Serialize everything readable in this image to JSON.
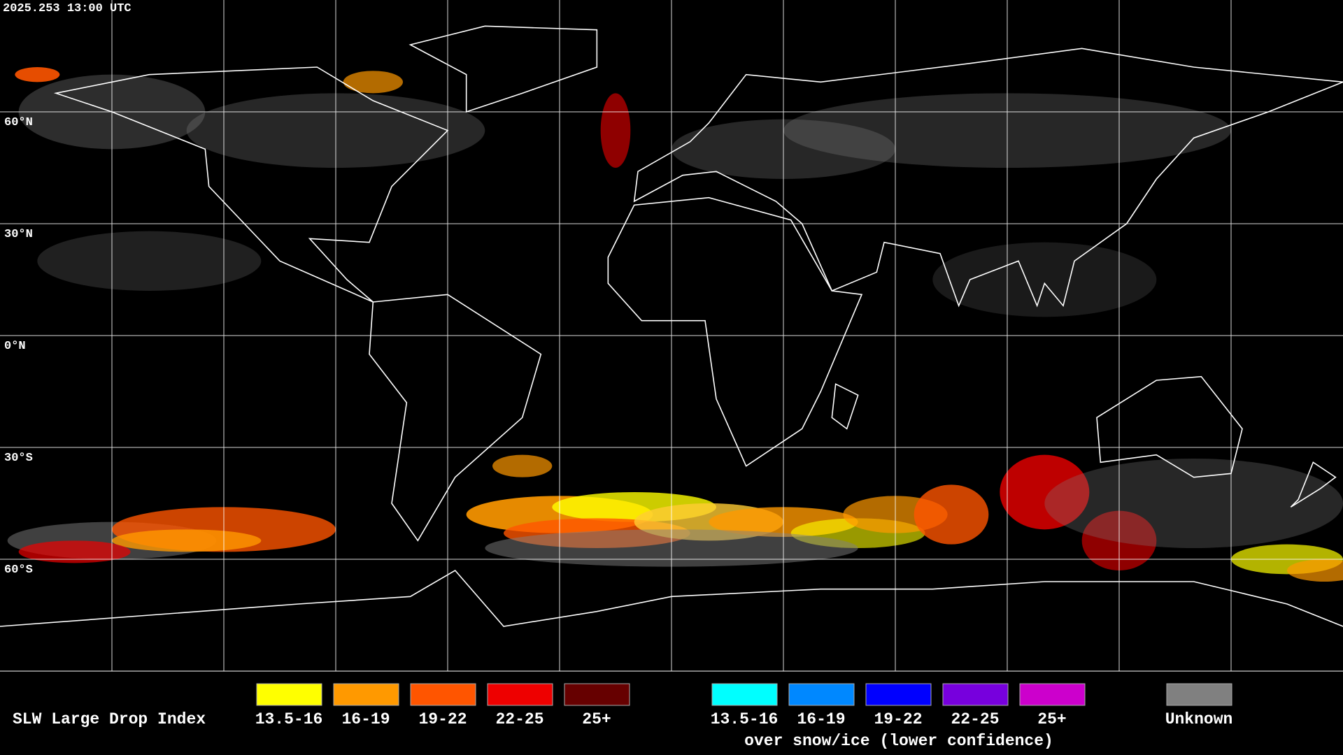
{
  "timestamp": "2025.253 13:00 UTC",
  "grid": {
    "latitude_labels": [
      "60°N",
      "30°N",
      "0°N",
      "30°S",
      "60°S"
    ]
  },
  "legend": {
    "title": "SLW Large Drop Index",
    "items": [
      {
        "label": "13.5-16",
        "color": "#ffff00"
      },
      {
        "label": "16-19",
        "color": "#ff9900"
      },
      {
        "label": "19-22",
        "color": "#ff5500"
      },
      {
        "label": "22-25",
        "color": "#ee0000"
      },
      {
        "label": "25+",
        "color": "#660000"
      }
    ],
    "snow_items": [
      {
        "label": "13.5-16",
        "color": "#00ffff"
      },
      {
        "label": "16-19",
        "color": "#0088ff"
      },
      {
        "label": "19-22",
        "color": "#0000ff"
      },
      {
        "label": "22-25",
        "color": "#7700dd"
      },
      {
        "label": "25+",
        "color": "#cc00cc"
      }
    ],
    "snow_caption": "over snow/ice (lower confidence)",
    "unknown": {
      "label": "Unknown",
      "color": "#808080"
    }
  }
}
